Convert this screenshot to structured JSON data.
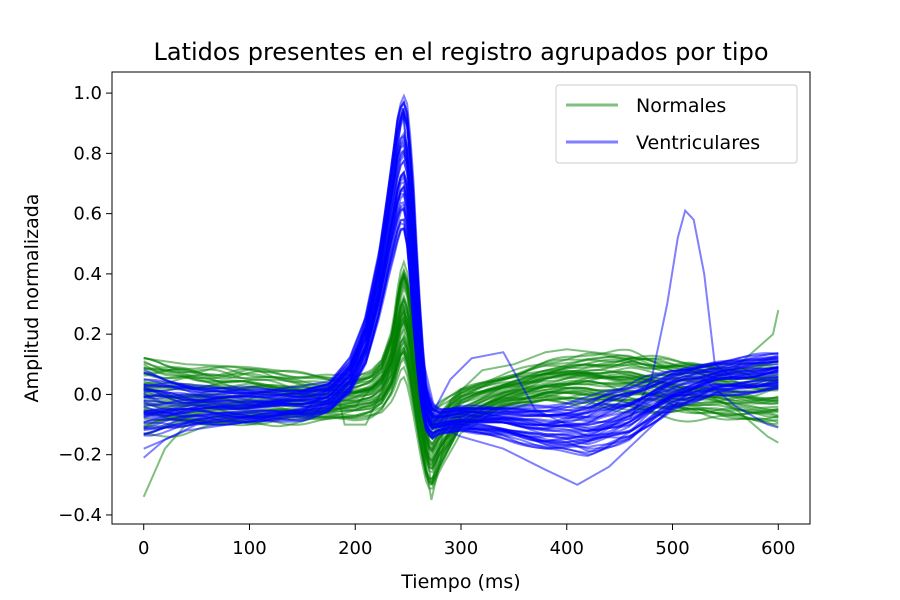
{
  "chart_data": {
    "type": "line",
    "title": "Latidos presentes en el registro agrupados por tipo",
    "xlabel": "Tiempo (ms)",
    "ylabel": "Amplitud normalizada",
    "xlim": [
      -30,
      630
    ],
    "ylim": [
      -0.43,
      1.07
    ],
    "xticks": [
      0,
      100,
      200,
      300,
      400,
      500,
      600
    ],
    "xtick_labels": [
      "0",
      "100",
      "200",
      "300",
      "400",
      "500",
      "600"
    ],
    "yticks": [
      -0.4,
      -0.2,
      0.0,
      0.2,
      0.4,
      0.6,
      0.8,
      1.0
    ],
    "ytick_labels": [
      "−0.4",
      "−0.2",
      "0.0",
      "0.2",
      "0.4",
      "0.6",
      "0.8",
      "1.0"
    ],
    "grid": false,
    "legend_position": "top-right",
    "series": [
      {
        "name": "Normales",
        "color": "#008000",
        "opacity": 0.5,
        "envelope": {
          "x": [
            0,
            20,
            50,
            100,
            150,
            180,
            200,
            215,
            225,
            235,
            240,
            245,
            250,
            255,
            262,
            268,
            272,
            280,
            300,
            340,
            380,
            420,
            460,
            500,
            540,
            580,
            600
          ],
          "upper": [
            0.13,
            0.11,
            0.09,
            0.08,
            0.06,
            0.05,
            0.06,
            0.08,
            0.12,
            0.22,
            0.35,
            0.45,
            0.4,
            0.25,
            0.1,
            -0.02,
            -0.06,
            -0.03,
            0.02,
            0.06,
            0.1,
            0.13,
            0.14,
            0.12,
            0.1,
            0.09,
            0.1
          ],
          "lower": [
            -0.13,
            -0.12,
            -0.11,
            -0.1,
            -0.09,
            -0.08,
            -0.08,
            -0.07,
            -0.05,
            0.0,
            0.05,
            0.1,
            0.05,
            -0.05,
            -0.2,
            -0.3,
            -0.32,
            -0.25,
            -0.12,
            -0.05,
            -0.02,
            -0.03,
            -0.05,
            -0.07,
            -0.08,
            -0.09,
            -0.1
          ]
        },
        "outliers": [
          {
            "x": [
              0,
              20,
              40,
              80,
              120,
              160,
              200,
              230,
              245,
              255,
              265,
              272,
              285,
              320,
              360,
              400,
              440,
              480,
              520,
              560,
              590,
              600
            ],
            "y": [
              -0.34,
              -0.18,
              -0.1,
              -0.08,
              -0.07,
              -0.06,
              -0.04,
              0.08,
              0.3,
              0.1,
              -0.2,
              -0.35,
              -0.15,
              -0.05,
              0.0,
              0.03,
              0.06,
              0.05,
              0.02,
              -0.05,
              -0.14,
              -0.16
            ]
          },
          {
            "x": [
              0,
              40,
              100,
              150,
              180,
              190,
              210,
              230,
              245,
              252,
              262,
              272,
              290,
              320,
              350,
              380,
              400,
              450,
              500,
              550,
              595,
              600
            ],
            "y": [
              0.12,
              0.1,
              0.09,
              0.07,
              0.05,
              -0.1,
              -0.1,
              0.05,
              0.3,
              0.25,
              -0.05,
              -0.3,
              -0.02,
              0.08,
              0.1,
              0.14,
              0.15,
              0.13,
              0.1,
              0.06,
              0.2,
              0.28
            ]
          }
        ]
      },
      {
        "name": "Ventriculares",
        "color": "#0000ff",
        "opacity": 0.5,
        "envelope": {
          "x": [
            0,
            20,
            50,
            100,
            150,
            175,
            195,
            210,
            222,
            232,
            240,
            245,
            250,
            255,
            260,
            266,
            272,
            280,
            300,
            340,
            380,
            420,
            460,
            500,
            540,
            580,
            600
          ],
          "upper": [
            0.07,
            0.05,
            0.03,
            0.02,
            0.02,
            0.04,
            0.12,
            0.25,
            0.45,
            0.7,
            0.92,
            1.0,
            0.95,
            0.7,
            0.35,
            0.05,
            -0.03,
            -0.05,
            -0.04,
            -0.04,
            -0.04,
            -0.02,
            0.03,
            0.08,
            0.11,
            0.13,
            0.14
          ],
          "lower": [
            -0.14,
            -0.12,
            -0.1,
            -0.09,
            -0.08,
            -0.06,
            0.0,
            0.1,
            0.25,
            0.4,
            0.5,
            0.55,
            0.45,
            0.2,
            0.0,
            -0.12,
            -0.15,
            -0.13,
            -0.12,
            -0.14,
            -0.18,
            -0.2,
            -0.16,
            -0.05,
            0.0,
            0.01,
            0.02
          ]
        },
        "outliers": [
          {
            "x": [
              0,
              20,
              50,
              100,
              150,
              200,
              230,
              245,
              255,
              265,
              275,
              290,
              310,
              340,
              370,
              400,
              430,
              460,
              480,
              495,
              505,
              512,
              520,
              530,
              540,
              560,
              580,
              600
            ],
            "y": [
              -0.21,
              -0.15,
              -0.1,
              -0.08,
              -0.06,
              0.1,
              0.6,
              0.95,
              0.6,
              0.1,
              -0.05,
              0.05,
              0.12,
              0.14,
              -0.05,
              -0.1,
              -0.12,
              -0.08,
              0.05,
              0.3,
              0.52,
              0.61,
              0.58,
              0.4,
              0.1,
              0.05,
              0.06,
              0.08
            ]
          },
          {
            "x": [
              0,
              40,
              100,
              160,
              200,
              230,
              245,
              255,
              265,
              275,
              300,
              340,
              380,
              410,
              440,
              470,
              500,
              530,
              560,
              590,
              600
            ],
            "y": [
              -0.18,
              -0.12,
              -0.09,
              -0.07,
              0.08,
              0.55,
              0.95,
              0.55,
              0.05,
              -0.1,
              -0.14,
              -0.18,
              -0.25,
              -0.3,
              -0.24,
              -0.14,
              -0.04,
              0.05,
              -0.04,
              -0.1,
              -0.11
            ]
          }
        ]
      }
    ]
  }
}
